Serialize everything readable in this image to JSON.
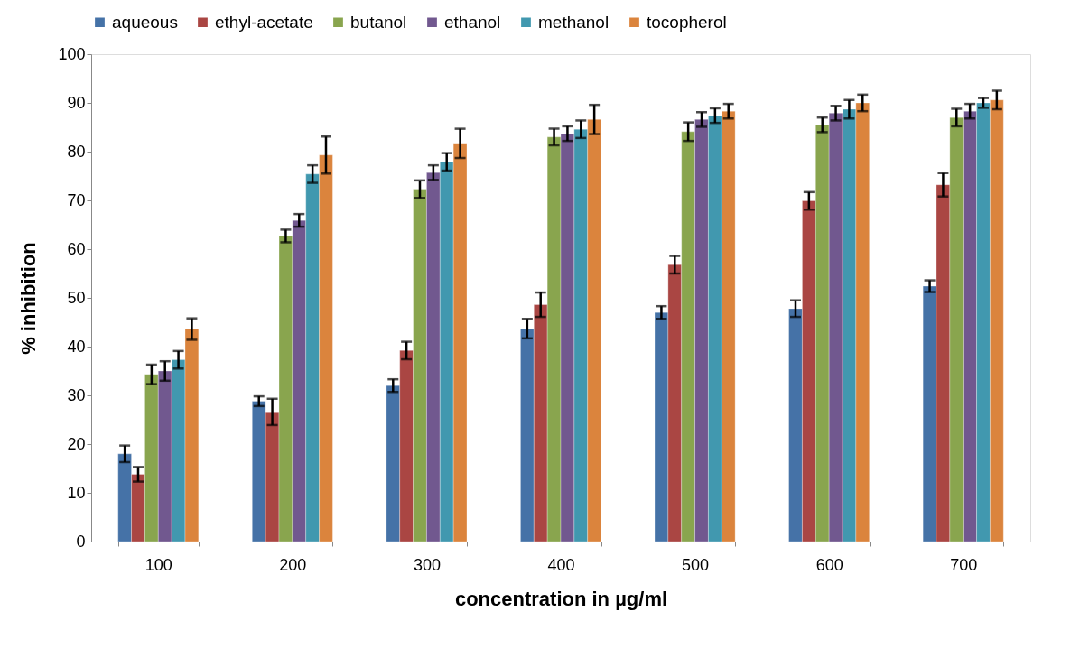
{
  "chart_data": {
    "type": "bar",
    "xlabel": "concentration in µg/ml",
    "ylabel": "% inhibition",
    "categories": [
      "100",
      "200",
      "300",
      "400",
      "500",
      "600",
      "700"
    ],
    "ylim": [
      0,
      100
    ],
    "yticks": [
      0,
      10,
      20,
      30,
      40,
      50,
      60,
      70,
      80,
      90,
      100
    ],
    "grid": false,
    "legend": "top",
    "series": [
      {
        "name": "aqueous",
        "color": "#4572a7",
        "values": [
          18,
          28.8,
          32,
          43.7,
          47,
          47.8,
          52.4
        ],
        "errors": [
          1.7,
          1,
          1.3,
          2,
          1.3,
          1.7,
          1.2
        ]
      },
      {
        "name": "ethyl-acetate",
        "color": "#aa4643",
        "values": [
          13.8,
          26.6,
          39.2,
          48.6,
          56.8,
          69.9,
          73.2
        ],
        "errors": [
          1.5,
          2.7,
          1.8,
          2.5,
          1.8,
          1.8,
          2.4
        ]
      },
      {
        "name": "butanol",
        "color": "#89a54e",
        "values": [
          34.3,
          62.7,
          72.3,
          83,
          84.1,
          85.5,
          87
        ],
        "errors": [
          2,
          1.3,
          1.8,
          1.7,
          1.9,
          1.5,
          1.8
        ]
      },
      {
        "name": "ethanol",
        "color": "#71588f",
        "values": [
          35,
          65.9,
          75.7,
          83.7,
          86.6,
          87.9,
          88.3
        ],
        "errors": [
          2,
          1.3,
          1.5,
          1.5,
          1.5,
          1.5,
          1.5
        ]
      },
      {
        "name": "methanol",
        "color": "#4198af",
        "values": [
          37.3,
          75.4,
          77.9,
          84.6,
          87.4,
          88.7,
          90
        ],
        "errors": [
          1.8,
          1.8,
          1.8,
          1.8,
          1.5,
          1.9,
          1
        ]
      },
      {
        "name": "tocopherol",
        "color": "#db843d",
        "values": [
          43.6,
          79.3,
          81.7,
          86.6,
          88.3,
          90,
          90.6
        ],
        "errors": [
          2.2,
          3.8,
          3,
          3,
          1.5,
          1.7,
          1.9
        ]
      }
    ]
  }
}
